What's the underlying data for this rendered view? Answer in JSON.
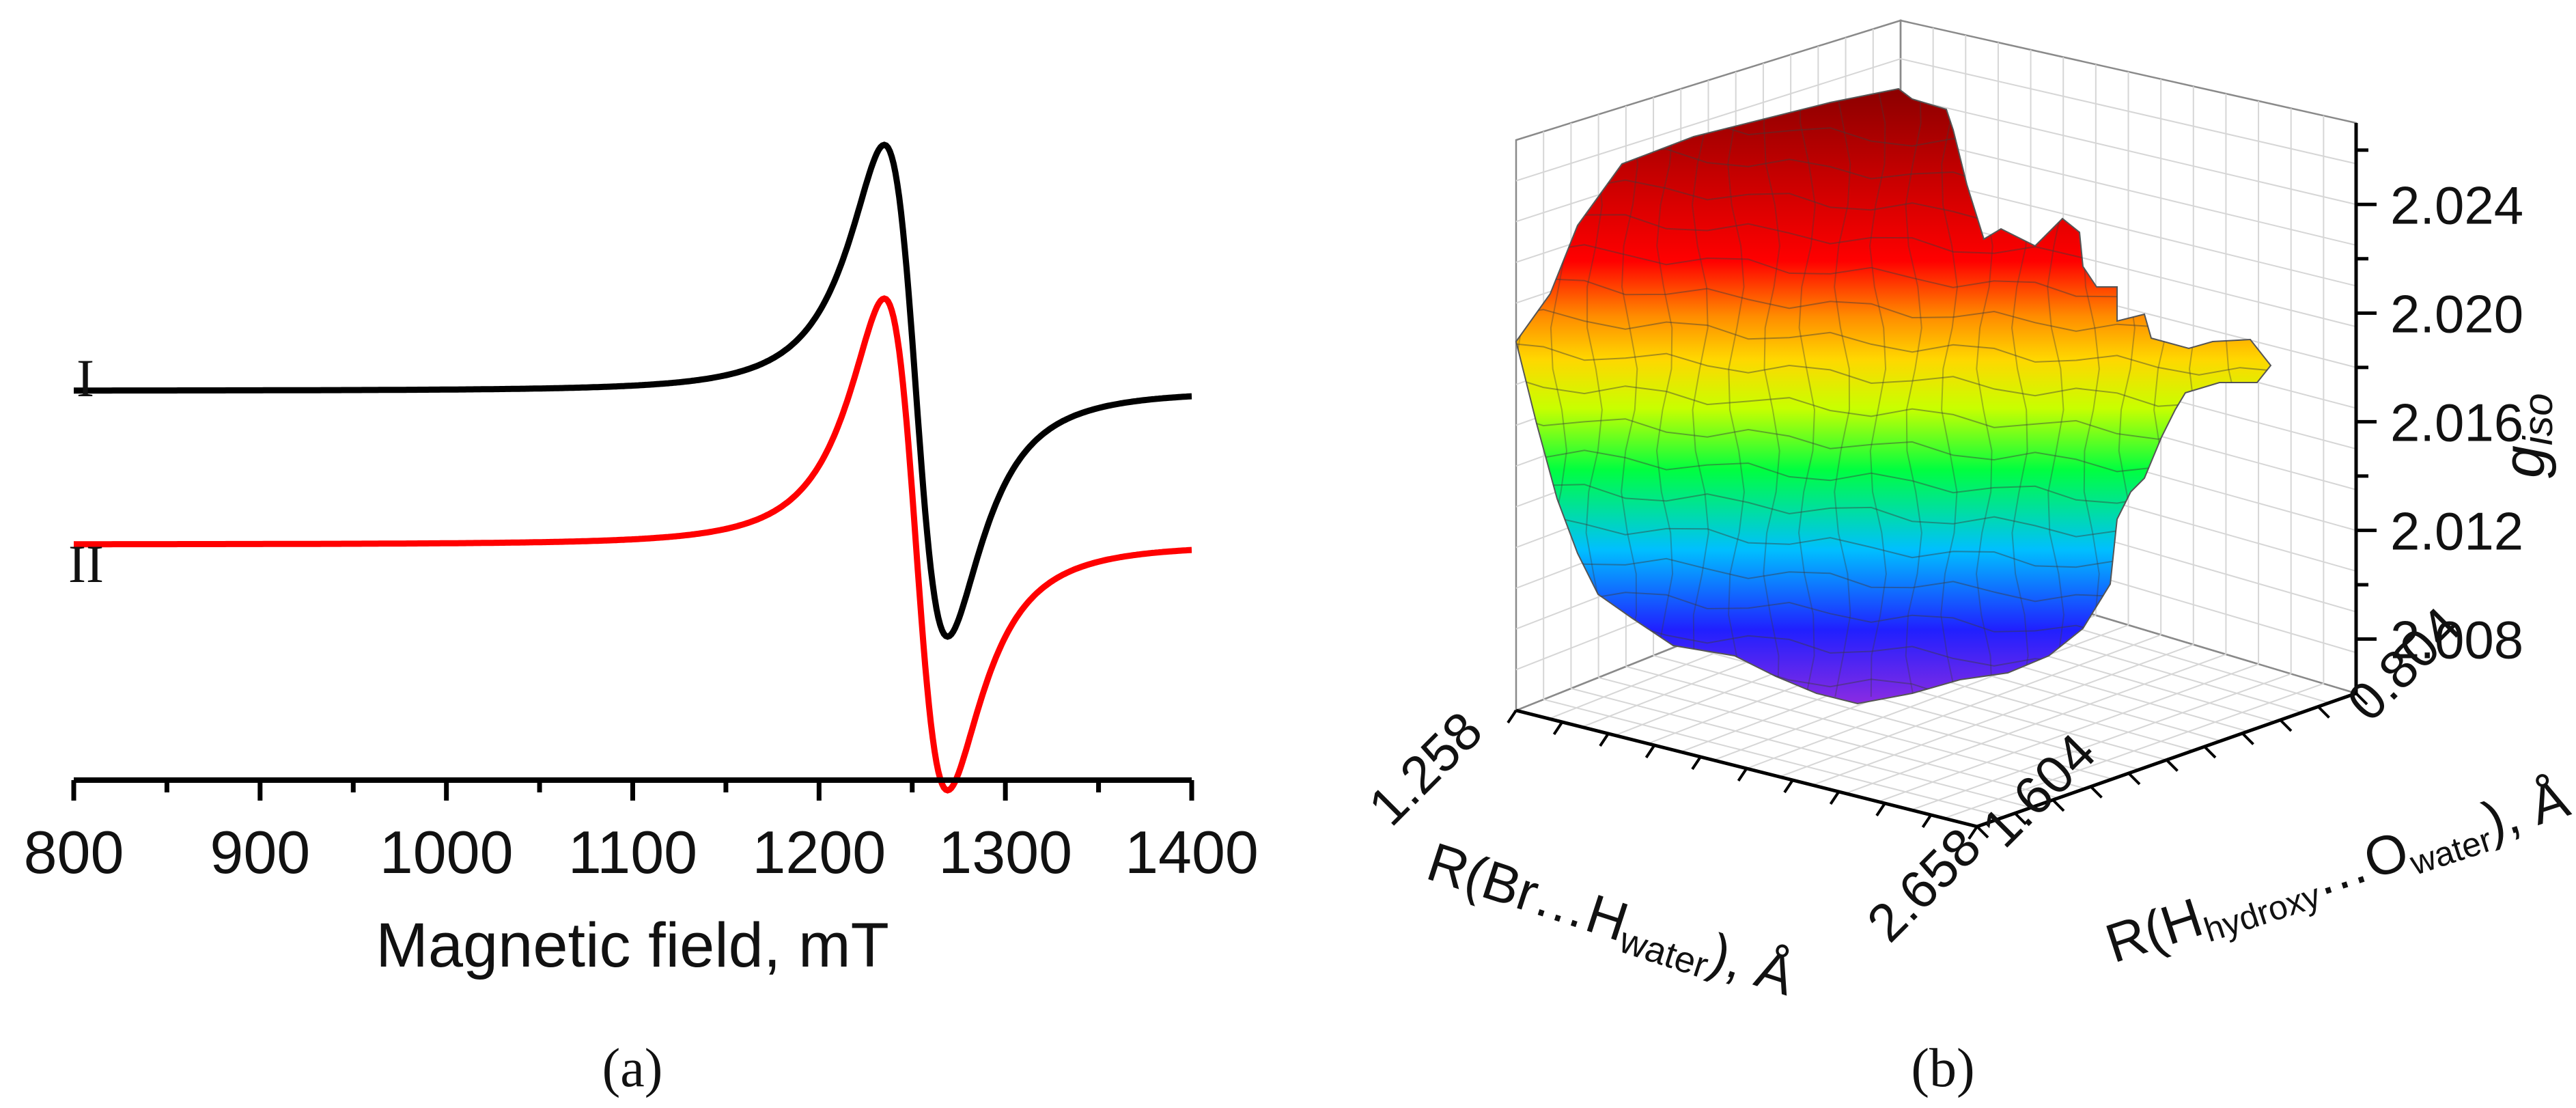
{
  "chart_data": [
    {
      "type": "line",
      "xlabel": "Magnetic field, mT",
      "xticks": [
        "800",
        "900",
        "1000",
        "1100",
        "1200",
        "1300",
        "1400"
      ],
      "xlim": [
        800,
        1400
      ],
      "series": [
        {
          "name": "I",
          "color": "#000000",
          "offset": 0.4,
          "amplitude": 1.0
        },
        {
          "name": "II",
          "color": "#ff0000",
          "offset": 0.15,
          "amplitude": 1.0
        }
      ],
      "resonance_field": 1252,
      "peak_field": 1234,
      "trough_field": 1268,
      "panel_label": "(a)"
    },
    {
      "type": "surface3d",
      "zlabel_main": "g",
      "zlabel_sub": "iso",
      "zticks": [
        "2.008",
        "2.012",
        "2.016",
        "2.020",
        "2.024"
      ],
      "zlim": [
        2.006,
        2.027
      ],
      "xaxis": {
        "label_pre": "R(Br…H",
        "label_sub": "water",
        "label_post": "), Å",
        "ticks": [
          "1.258",
          "2.658"
        ]
      },
      "yaxis": {
        "label_pre": "R(H",
        "label_sub1": "hydroxy",
        "label_mid": "…O",
        "label_sub2": "water",
        "label_post": "), Å",
        "ticks": [
          "0.804",
          "1.604"
        ]
      },
      "colormap": [
        "#8a2be2",
        "#2020ff",
        "#00bfff",
        "#00ff40",
        "#c8ff00",
        "#ffd700",
        "#ff8c00",
        "#ff0000",
        "#a00000"
      ],
      "panel_label": "(b)"
    }
  ]
}
